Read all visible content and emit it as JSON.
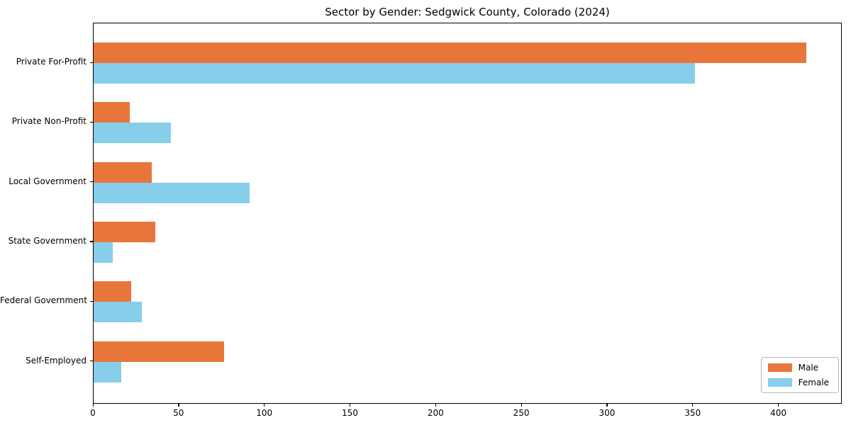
{
  "chart_data": {
    "type": "bar",
    "orientation": "horizontal",
    "title": "Sector by Gender: Sedgwick County, Colorado (2024)",
    "categories": [
      "Private For-Profit",
      "Private Non-Profit",
      "Local Government",
      "State Government",
      "Federal Government",
      "Self-Employed"
    ],
    "series": [
      {
        "name": "Male",
        "color": "#e8763b",
        "values": [
          416,
          21,
          34,
          36,
          22,
          76
        ]
      },
      {
        "name": "Female",
        "color": "#87ceeb",
        "values": [
          351,
          45,
          91,
          11,
          28,
          16
        ]
      }
    ],
    "xlabel": "",
    "ylabel": "",
    "xlim": [
      0,
      437
    ],
    "xticks": [
      0,
      50,
      100,
      150,
      200,
      250,
      300,
      350,
      400
    ],
    "grid": false,
    "legend_position": "lower right",
    "legend_labels": [
      "Male",
      "Female"
    ],
    "axis_color": "#000000",
    "background_color": "#ffffff"
  }
}
